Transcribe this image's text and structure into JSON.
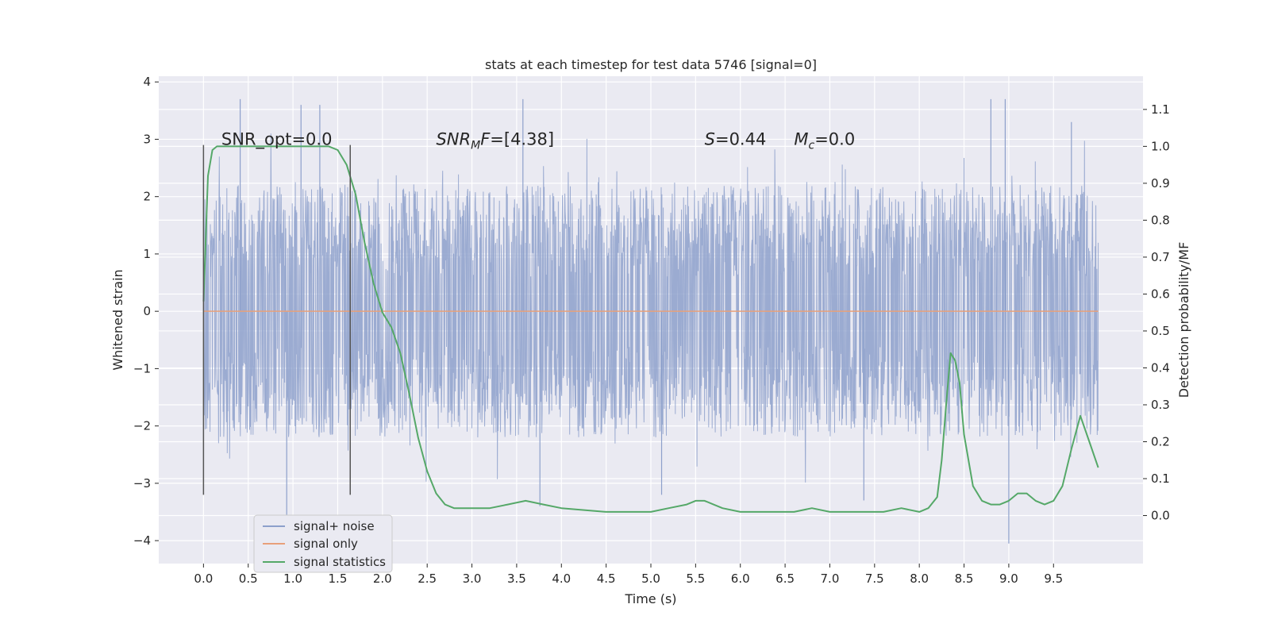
{
  "chart_data": {
    "type": "line",
    "title": "stats at each timestep for test data 5746 [signal=0]",
    "xlabel": "Time (s)",
    "ylabel_left": "Whitened strain",
    "ylabel_right": "Detection probability/MF",
    "xlim": [
      -0.5,
      10.5
    ],
    "ylim_left": [
      -4.4,
      4.1
    ],
    "ylim_right": [
      -0.13,
      1.19
    ],
    "x_ticks": [
      0.0,
      0.5,
      1.0,
      1.5,
      2.0,
      2.5,
      3.0,
      3.5,
      4.0,
      4.5,
      5.0,
      5.5,
      6.0,
      6.5,
      7.0,
      7.5,
      8.0,
      8.5,
      9.0,
      9.5
    ],
    "x_tick_labels": [
      "0.0",
      "0.5",
      "1.0",
      "1.5",
      "2.0",
      "2.5",
      "3.0",
      "3.5",
      "4.0",
      "4.5",
      "5.0",
      "5.5",
      "6.0",
      "6.5",
      "7.0",
      "7.5",
      "8.0",
      "8.5",
      "9.0",
      "9.5"
    ],
    "y_left_ticks": [
      -4,
      -3,
      -2,
      -1,
      0,
      1,
      2,
      3,
      4
    ],
    "y_left_tick_labels": [
      "−4",
      "−3",
      "−2",
      "−1",
      "0",
      "1",
      "2",
      "3",
      "4"
    ],
    "y_right_ticks": [
      0.0,
      0.1,
      0.2,
      0.3,
      0.4,
      0.5,
      0.6,
      0.7,
      0.8,
      0.9,
      1.0,
      1.1
    ],
    "y_right_tick_labels": [
      "0.0",
      "0.1",
      "0.2",
      "0.3",
      "0.4",
      "0.5",
      "0.6",
      "0.7",
      "0.8",
      "0.9",
      "1.0",
      "1.1"
    ],
    "grid": true,
    "legend_position": "lower-left",
    "series": [
      {
        "name": "signal+ noise",
        "axis": "left",
        "color": "#8da0cb",
        "x_range": [
          0.0,
          10.0
        ],
        "amplitude_envelope_typical": 1.6,
        "peak_values": [
          {
            "x": 0.41,
            "y": 3.7
          },
          {
            "x": 0.93,
            "y": -3.6
          },
          {
            "x": 1.09,
            "y": 3.6
          },
          {
            "x": 1.3,
            "y": 3.6
          },
          {
            "x": 3.57,
            "y": 3.7
          },
          {
            "x": 3.76,
            "y": -3.4
          },
          {
            "x": 5.12,
            "y": -3.2
          },
          {
            "x": 7.38,
            "y": -3.3
          },
          {
            "x": 8.8,
            "y": 3.7
          },
          {
            "x": 8.96,
            "y": 3.7
          },
          {
            "x": 9.0,
            "y": -4.05
          },
          {
            "x": 9.7,
            "y": 3.3
          }
        ]
      },
      {
        "name": "signal only",
        "axis": "left",
        "color": "#e8a07a",
        "x": [
          0.0,
          10.0
        ],
        "y": [
          0.0,
          0.0
        ]
      },
      {
        "name": "signal statistics",
        "axis": "right",
        "color": "#55a868",
        "x": [
          0.0,
          0.05,
          0.1,
          0.15,
          0.2,
          0.3,
          0.5,
          0.8,
          1.0,
          1.2,
          1.4,
          1.5,
          1.6,
          1.7,
          1.8,
          1.9,
          2.0,
          2.1,
          2.2,
          2.3,
          2.4,
          2.5,
          2.6,
          2.7,
          2.8,
          3.0,
          3.2,
          3.4,
          3.6,
          3.8,
          4.0,
          4.5,
          5.0,
          5.2,
          5.4,
          5.5,
          5.6,
          5.8,
          6.0,
          6.2,
          6.4,
          6.6,
          6.8,
          7.0,
          7.2,
          7.4,
          7.6,
          7.8,
          8.0,
          8.1,
          8.2,
          8.25,
          8.3,
          8.35,
          8.4,
          8.45,
          8.5,
          8.6,
          8.7,
          8.8,
          8.9,
          9.0,
          9.1,
          9.2,
          9.3,
          9.4,
          9.5,
          9.6,
          9.7,
          9.8,
          9.9,
          10.0
        ],
        "y": [
          0.58,
          0.92,
          0.99,
          1.0,
          1.0,
          1.0,
          1.0,
          1.0,
          1.0,
          1.0,
          1.0,
          0.99,
          0.95,
          0.87,
          0.74,
          0.63,
          0.55,
          0.51,
          0.44,
          0.33,
          0.21,
          0.12,
          0.06,
          0.03,
          0.02,
          0.02,
          0.02,
          0.03,
          0.04,
          0.03,
          0.02,
          0.01,
          0.01,
          0.02,
          0.03,
          0.04,
          0.04,
          0.02,
          0.01,
          0.01,
          0.01,
          0.01,
          0.02,
          0.01,
          0.01,
          0.01,
          0.01,
          0.02,
          0.01,
          0.02,
          0.05,
          0.15,
          0.3,
          0.44,
          0.42,
          0.36,
          0.22,
          0.08,
          0.04,
          0.03,
          0.03,
          0.04,
          0.06,
          0.06,
          0.04,
          0.03,
          0.04,
          0.08,
          0.18,
          0.27,
          0.2,
          0.13
        ]
      }
    ],
    "vertical_lines": [
      {
        "x": 0.0,
        "y_min": -3.2,
        "y_max": 2.9,
        "color": "#555555"
      },
      {
        "x": 1.64,
        "y_min": -3.2,
        "y_max": 2.9,
        "color": "#555555"
      }
    ],
    "annotations": [
      {
        "text": "SNR_opt=0.0",
        "x": 0.2,
        "y": 3.0
      },
      {
        "text": "=[4.38]",
        "math_prefix": "SNR",
        "math_sub": "M",
        "math_suffix": "F",
        "x": 2.6,
        "y": 3.0
      },
      {
        "text": "=0.44",
        "math_prefix": "S",
        "x": 5.6,
        "y": 3.0
      },
      {
        "text": "=0.0",
        "math_prefix": "M",
        "math_sub": "c",
        "x": 6.6,
        "y": 3.0
      }
    ]
  }
}
